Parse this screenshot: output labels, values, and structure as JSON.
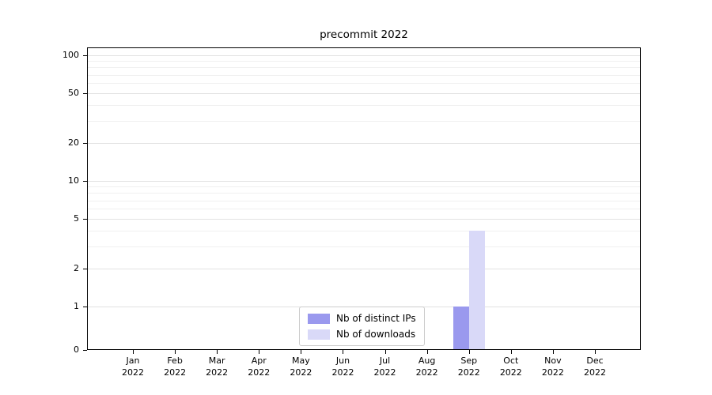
{
  "chart_data": {
    "type": "bar",
    "title": "precommit 2022",
    "x_tick_year": "2022",
    "categories": [
      "Jan",
      "Feb",
      "Mar",
      "Apr",
      "May",
      "Jun",
      "Jul",
      "Aug",
      "Sep",
      "Oct",
      "Nov",
      "Dec"
    ],
    "series": [
      {
        "name": "Nb of distinct IPs",
        "color": "#9a99ee",
        "values": [
          0,
          0,
          0,
          0,
          0,
          0,
          0,
          0,
          1,
          0,
          0,
          0
        ]
      },
      {
        "name": "Nb of downloads",
        "color": "#d9d9f8",
        "values": [
          0,
          0,
          0,
          0,
          0,
          0,
          0,
          0,
          4,
          0,
          0,
          0
        ]
      }
    ],
    "yscale": "symlog",
    "yticks": [
      0,
      1,
      2,
      5,
      10,
      20,
      50,
      100
    ],
    "ylim": [
      0,
      115
    ],
    "grid": "horizontal major + log minor",
    "legend_position": "lower center"
  }
}
